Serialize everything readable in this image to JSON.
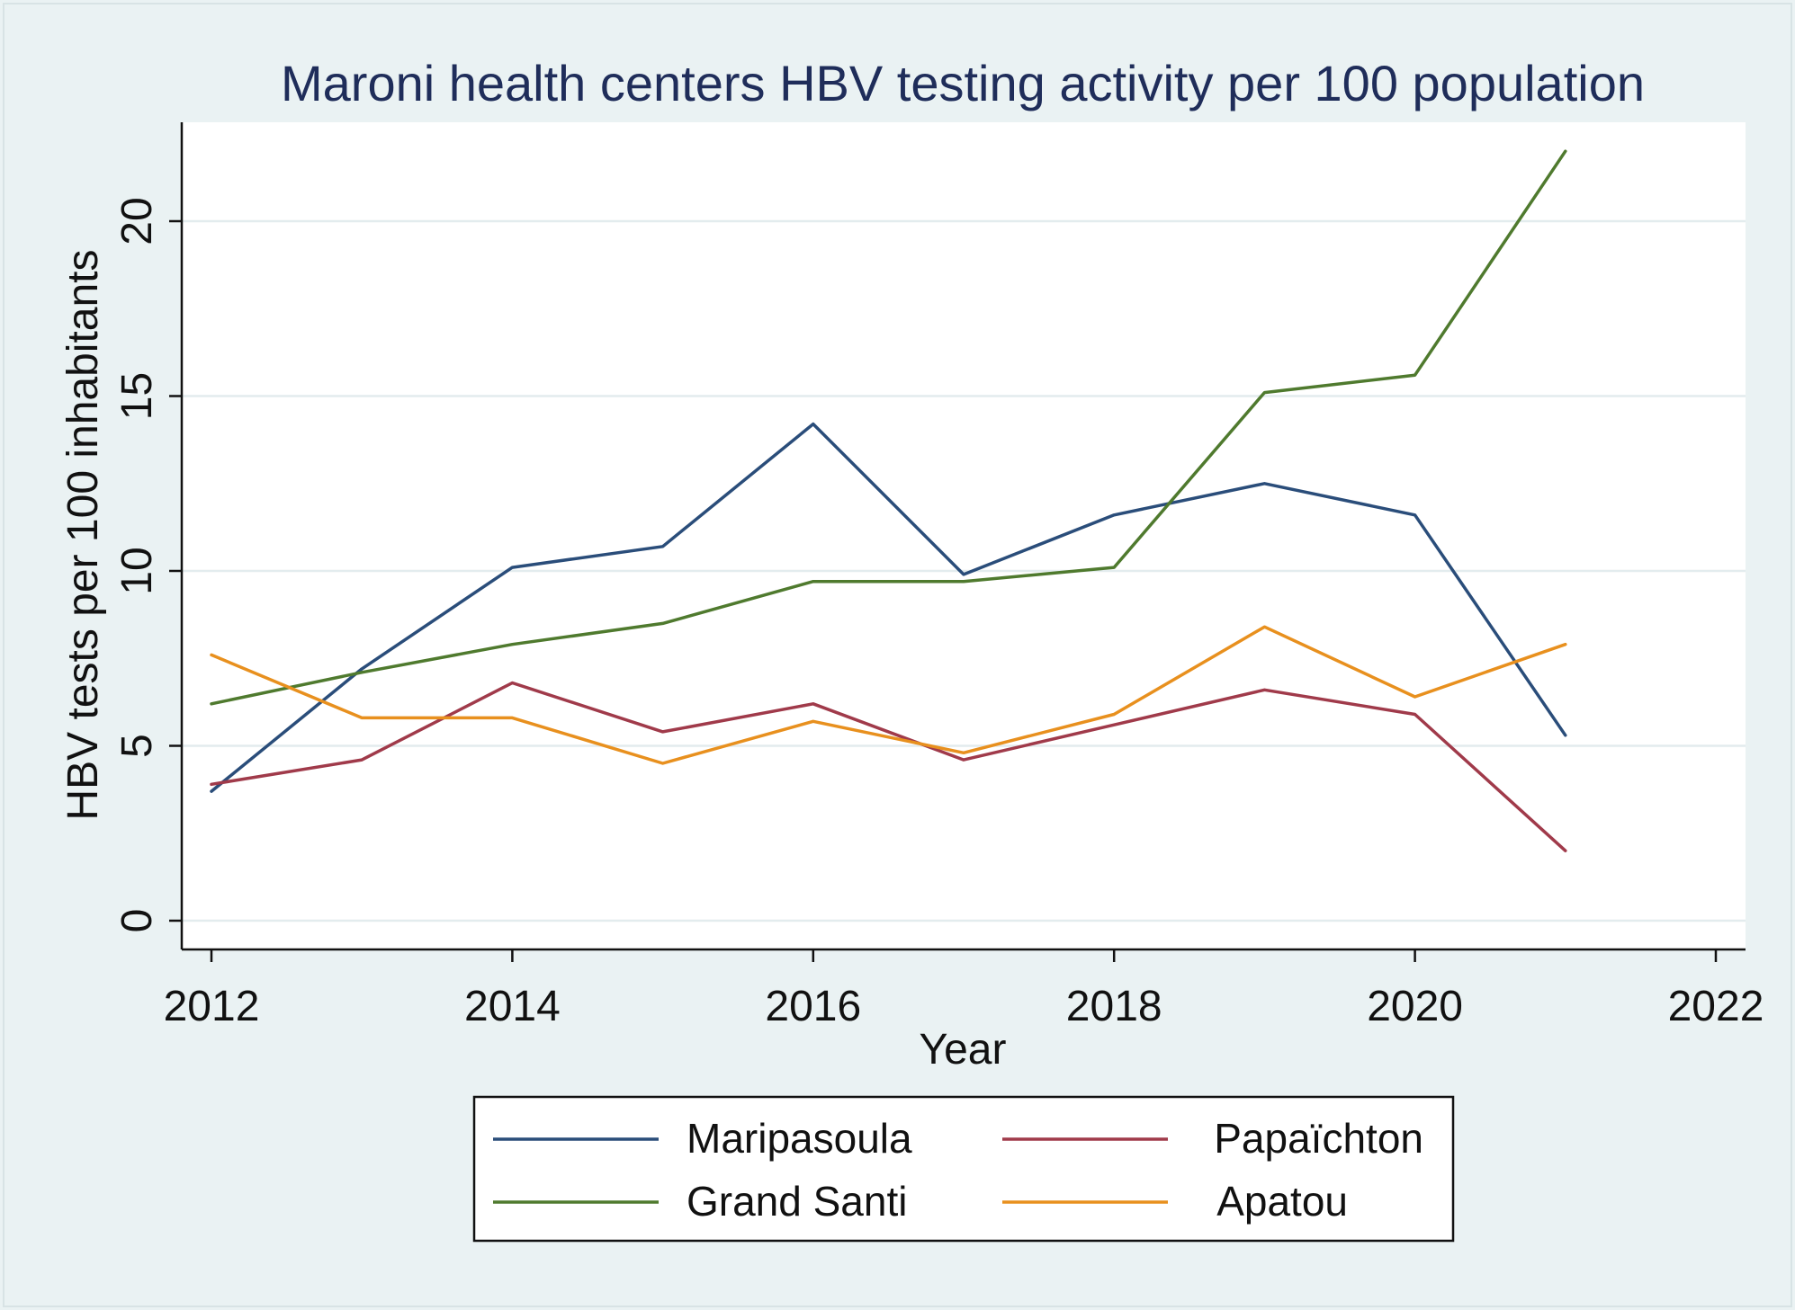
{
  "chart_data": {
    "type": "line",
    "title": "Maroni health centers HBV testing activity per 100 population",
    "xlabel": "Year",
    "ylabel": "HBV tests per 100 inhabitants",
    "xlim": [
      2012,
      2022
    ],
    "ylim": [
      0,
      23
    ],
    "xticks": [
      2012,
      2014,
      2016,
      2018,
      2020,
      2022
    ],
    "yticks": [
      0,
      5,
      10,
      15,
      20
    ],
    "grid": "horizontal",
    "legend_position": "bottom",
    "x": [
      2012,
      2013,
      2014,
      2015,
      2016,
      2017,
      2018,
      2019,
      2020,
      2021
    ],
    "series": [
      {
        "name": "Maripasoula",
        "color": "#2a4d7a",
        "values": [
          3.7,
          7.2,
          10.1,
          10.7,
          14.2,
          9.9,
          11.6,
          12.5,
          11.6,
          5.3
        ]
      },
      {
        "name": "Papaïchton",
        "color": "#a03a4a",
        "values": [
          3.9,
          4.6,
          6.8,
          5.4,
          6.2,
          4.6,
          5.6,
          6.6,
          5.9,
          2.0
        ]
      },
      {
        "name": "Grand Santi",
        "color": "#4f7a2e",
        "values": [
          6.2,
          7.1,
          7.9,
          8.5,
          9.7,
          9.7,
          10.1,
          15.1,
          15.6,
          22.0
        ]
      },
      {
        "name": "Apatou",
        "color": "#e8901e",
        "values": [
          7.6,
          5.8,
          5.8,
          4.5,
          5.7,
          4.8,
          5.9,
          8.4,
          6.4,
          7.9
        ]
      }
    ]
  },
  "style": {
    "outer_background": "#eaf2f3",
    "plot_background": "#ffffff",
    "grid_color": "#e3ecee",
    "axis_color": "#111111",
    "title_color": "#1f2d5a"
  }
}
